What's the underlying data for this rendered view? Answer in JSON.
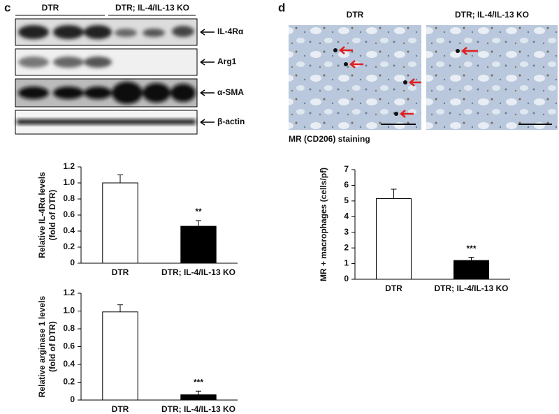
{
  "panel_labels": [
    "c",
    "d"
  ],
  "blot": {
    "headers": [
      "DTR",
      "DTR; IL-4/IL-13 KO"
    ],
    "bands": [
      "IL-4Rα",
      "Arg1",
      "α-SMA",
      "β-actin"
    ]
  },
  "micrograph": {
    "headers": [
      "DTR",
      "DTR; IL-4/IL-13 KO"
    ],
    "caption": "MR (CD206) staining"
  },
  "chart_data": [
    {
      "type": "bar",
      "ylabel": [
        "Relative IL-4Rα levels",
        "(fold of DTR)"
      ],
      "categories": [
        "DTR",
        "DTR; IL-4/IL-13 KO"
      ],
      "values": [
        1.0,
        0.46
      ],
      "errors": [
        0.1,
        0.07
      ],
      "annotations": [
        null,
        "**"
      ],
      "colors": [
        "#ffffff",
        "#000000"
      ],
      "ylim": [
        0,
        1.2
      ],
      "yticks": [
        0,
        0.2,
        0.4,
        0.6,
        0.8,
        {
          "value": 1,
          "label": "1.0"
        },
        1.2
      ]
    },
    {
      "type": "bar",
      "ylabel": [
        "Relative arginase 1 levels",
        "(fold of DTR)"
      ],
      "categories": [
        "DTR",
        "DTR; IL-4/IL-13 KO"
      ],
      "values": [
        0.99,
        0.06
      ],
      "errors": [
        0.08,
        0.04
      ],
      "annotations": [
        null,
        "***"
      ],
      "colors": [
        "#ffffff",
        "#000000"
      ],
      "ylim": [
        0,
        1.2
      ],
      "yticks": [
        0,
        0.2,
        0.4,
        0.6,
        0.8,
        {
          "value": 1,
          "label": "1.0"
        },
        1.2
      ]
    },
    {
      "type": "bar",
      "ylabel": [
        "MR + macrophages (cells/pf)"
      ],
      "categories": [
        "DTR",
        "DTR; IL-4/IL-13 KO"
      ],
      "values": [
        5.15,
        1.2
      ],
      "errors": [
        0.6,
        0.2
      ],
      "annotations": [
        null,
        "***"
      ],
      "colors": [
        "#ffffff",
        "#000000"
      ],
      "ylim": [
        0,
        7
      ],
      "yticks": [
        0,
        1,
        2,
        3,
        4,
        5,
        6,
        7
      ]
    }
  ]
}
